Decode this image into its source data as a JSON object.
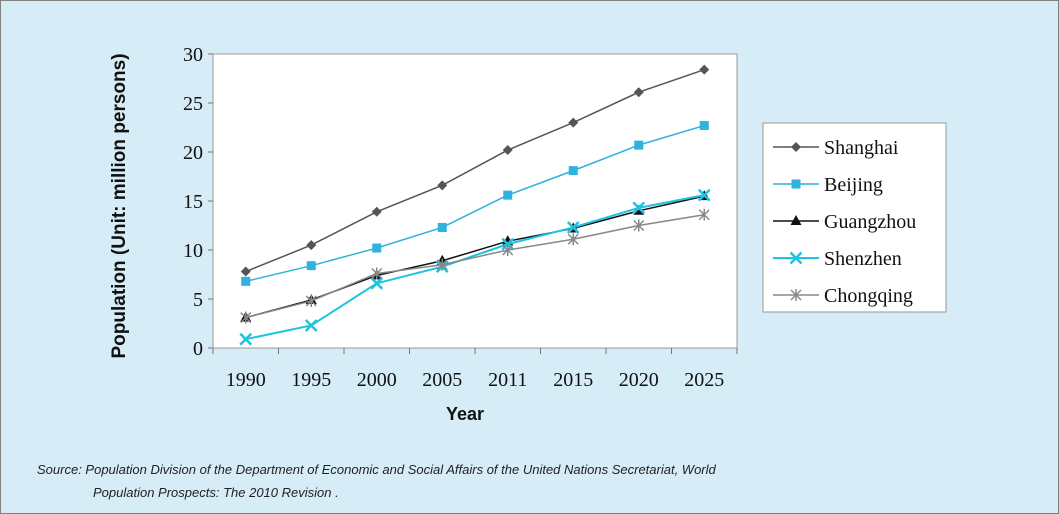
{
  "chart_data": {
    "type": "line",
    "title": "",
    "xlabel": "Year",
    "ylabel": "Population (Unit: million persons)",
    "categories": [
      "1990",
      "1995",
      "2000",
      "2005",
      "2011",
      "2015",
      "2020",
      "2025"
    ],
    "ylim": [
      0,
      30
    ],
    "yticks": [
      "0",
      "5",
      "10",
      "15",
      "20",
      "25",
      "30"
    ],
    "grid": false,
    "legend_position": "right",
    "series": [
      {
        "name": "Shanghai",
        "marker": "diamond",
        "color": "#555555",
        "values": [
          7.8,
          10.5,
          13.9,
          16.6,
          20.2,
          23.0,
          26.1,
          28.4
        ]
      },
      {
        "name": "Beijing",
        "marker": "square",
        "color": "#2fb2dc",
        "values": [
          6.8,
          8.4,
          10.2,
          12.3,
          15.6,
          18.1,
          20.7,
          22.7
        ]
      },
      {
        "name": "Guangzhou",
        "marker": "triangle",
        "color": "#111111",
        "values": [
          3.1,
          4.9,
          7.4,
          8.9,
          10.9,
          12.2,
          14.0,
          15.5
        ]
      },
      {
        "name": "Shenzhen",
        "marker": "x",
        "color": "#1ec3e0",
        "values": [
          0.9,
          2.3,
          6.6,
          8.3,
          10.6,
          12.3,
          14.3,
          15.6
        ]
      },
      {
        "name": "Chongqing",
        "marker": "asterisk",
        "color": "#888888",
        "values": [
          3.1,
          4.8,
          7.6,
          8.5,
          10.0,
          11.1,
          12.5,
          13.6
        ]
      }
    ]
  },
  "source": {
    "line1": "Source: Population Division of the Department of Economic and Social Affairs of the United Nations Secretariat, World",
    "line2": "Population Prospects: The 2010 Revision ."
  }
}
